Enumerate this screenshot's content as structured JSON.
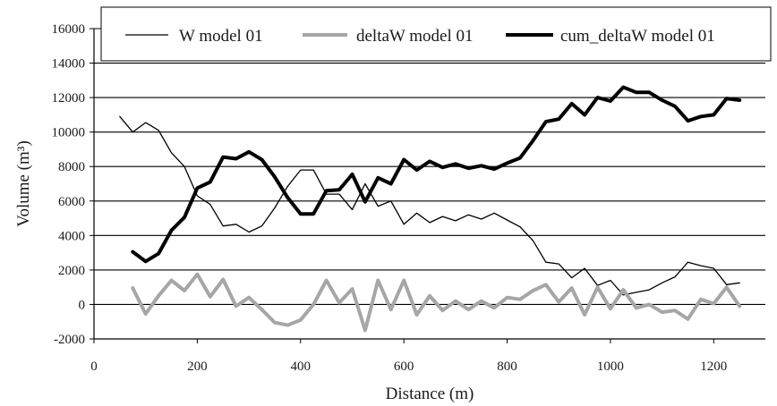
{
  "chart_data": {
    "type": "line",
    "xlabel": "Distance (m)",
    "ylabel": "Volume (m³)",
    "xlim": [
      0,
      1300
    ],
    "ylim": [
      -2000,
      16000
    ],
    "xticks": [
      0,
      200,
      400,
      600,
      800,
      1000,
      1200
    ],
    "yticks": [
      -2000,
      0,
      2000,
      4000,
      6000,
      8000,
      10000,
      12000,
      14000,
      16000
    ],
    "grid": "horizontal",
    "legend_position": "top",
    "series": [
      {
        "name": "W model 01",
        "color": "#000000",
        "points": [
          [
            50,
            10900
          ],
          [
            75,
            10000
          ],
          [
            100,
            10550
          ],
          [
            125,
            10100
          ],
          [
            150,
            8800
          ],
          [
            175,
            8000
          ],
          [
            200,
            6300
          ],
          [
            225,
            5800
          ],
          [
            250,
            4550
          ],
          [
            275,
            4650
          ],
          [
            300,
            4200
          ],
          [
            325,
            4550
          ],
          [
            350,
            5600
          ],
          [
            375,
            6850
          ],
          [
            400,
            7800
          ],
          [
            425,
            7800
          ],
          [
            450,
            6400
          ],
          [
            475,
            6400
          ],
          [
            500,
            5500
          ],
          [
            525,
            7000
          ],
          [
            550,
            5700
          ],
          [
            575,
            6000
          ],
          [
            600,
            4650
          ],
          [
            625,
            5300
          ],
          [
            650,
            4750
          ],
          [
            675,
            5100
          ],
          [
            700,
            4850
          ],
          [
            725,
            5200
          ],
          [
            750,
            4950
          ],
          [
            775,
            5300
          ],
          [
            800,
            4900
          ],
          [
            825,
            4500
          ],
          [
            850,
            3700
          ],
          [
            875,
            2450
          ],
          [
            900,
            2350
          ],
          [
            925,
            1550
          ],
          [
            950,
            2100
          ],
          [
            975,
            1100
          ],
          [
            1000,
            1400
          ],
          [
            1025,
            550
          ],
          [
            1050,
            700
          ],
          [
            1075,
            850
          ],
          [
            1100,
            1250
          ],
          [
            1125,
            1600
          ],
          [
            1150,
            2450
          ],
          [
            1175,
            2250
          ],
          [
            1200,
            2100
          ],
          [
            1225,
            1150
          ],
          [
            1250,
            1250
          ]
        ]
      },
      {
        "name": "deltaW model 01",
        "color": "#a6a6a6",
        "points": [
          [
            75,
            950
          ],
          [
            100,
            -550
          ],
          [
            125,
            500
          ],
          [
            150,
            1400
          ],
          [
            175,
            800
          ],
          [
            200,
            1750
          ],
          [
            225,
            450
          ],
          [
            250,
            1450
          ],
          [
            275,
            -100
          ],
          [
            300,
            400
          ],
          [
            325,
            -300
          ],
          [
            350,
            -1050
          ],
          [
            375,
            -1200
          ],
          [
            400,
            -900
          ],
          [
            425,
            0
          ],
          [
            450,
            1400
          ],
          [
            475,
            100
          ],
          [
            500,
            900
          ],
          [
            525,
            -1500
          ],
          [
            550,
            1400
          ],
          [
            575,
            -300
          ],
          [
            600,
            1400
          ],
          [
            625,
            -600
          ],
          [
            650,
            500
          ],
          [
            675,
            -350
          ],
          [
            700,
            200
          ],
          [
            725,
            -300
          ],
          [
            750,
            200
          ],
          [
            775,
            -200
          ],
          [
            800,
            400
          ],
          [
            825,
            300
          ],
          [
            850,
            800
          ],
          [
            875,
            1150
          ],
          [
            900,
            150
          ],
          [
            925,
            950
          ],
          [
            950,
            -600
          ],
          [
            975,
            1000
          ],
          [
            1000,
            -250
          ],
          [
            1025,
            850
          ],
          [
            1050,
            -200
          ],
          [
            1075,
            0
          ],
          [
            1100,
            -450
          ],
          [
            1125,
            -350
          ],
          [
            1150,
            -850
          ],
          [
            1175,
            300
          ],
          [
            1200,
            50
          ],
          [
            1225,
            1000
          ],
          [
            1250,
            -100
          ]
        ]
      },
      {
        "name": "cum_deltaW model 01",
        "color": "#000000",
        "points": [
          [
            75,
            3050
          ],
          [
            100,
            2500
          ],
          [
            125,
            2950
          ],
          [
            150,
            4300
          ],
          [
            175,
            5050
          ],
          [
            200,
            6750
          ],
          [
            225,
            7100
          ],
          [
            250,
            8550
          ],
          [
            275,
            8450
          ],
          [
            300,
            8850
          ],
          [
            325,
            8400
          ],
          [
            350,
            7400
          ],
          [
            375,
            6200
          ],
          [
            400,
            5250
          ],
          [
            425,
            5250
          ],
          [
            450,
            6600
          ],
          [
            475,
            6650
          ],
          [
            500,
            7550
          ],
          [
            525,
            5950
          ],
          [
            550,
            7350
          ],
          [
            575,
            7000
          ],
          [
            600,
            8400
          ],
          [
            625,
            7800
          ],
          [
            650,
            8300
          ],
          [
            675,
            7950
          ],
          [
            700,
            8150
          ],
          [
            725,
            7900
          ],
          [
            750,
            8050
          ],
          [
            775,
            7850
          ],
          [
            800,
            8200
          ],
          [
            825,
            8500
          ],
          [
            850,
            9500
          ],
          [
            875,
            10600
          ],
          [
            900,
            10750
          ],
          [
            925,
            11650
          ],
          [
            950,
            11000
          ],
          [
            975,
            12000
          ],
          [
            1000,
            11800
          ],
          [
            1025,
            12600
          ],
          [
            1050,
            12300
          ],
          [
            1075,
            12300
          ],
          [
            1100,
            11850
          ],
          [
            1125,
            11500
          ],
          [
            1150,
            10650
          ],
          [
            1175,
            10900
          ],
          [
            1200,
            11000
          ],
          [
            1225,
            11950
          ],
          [
            1250,
            11850
          ]
        ]
      }
    ]
  }
}
